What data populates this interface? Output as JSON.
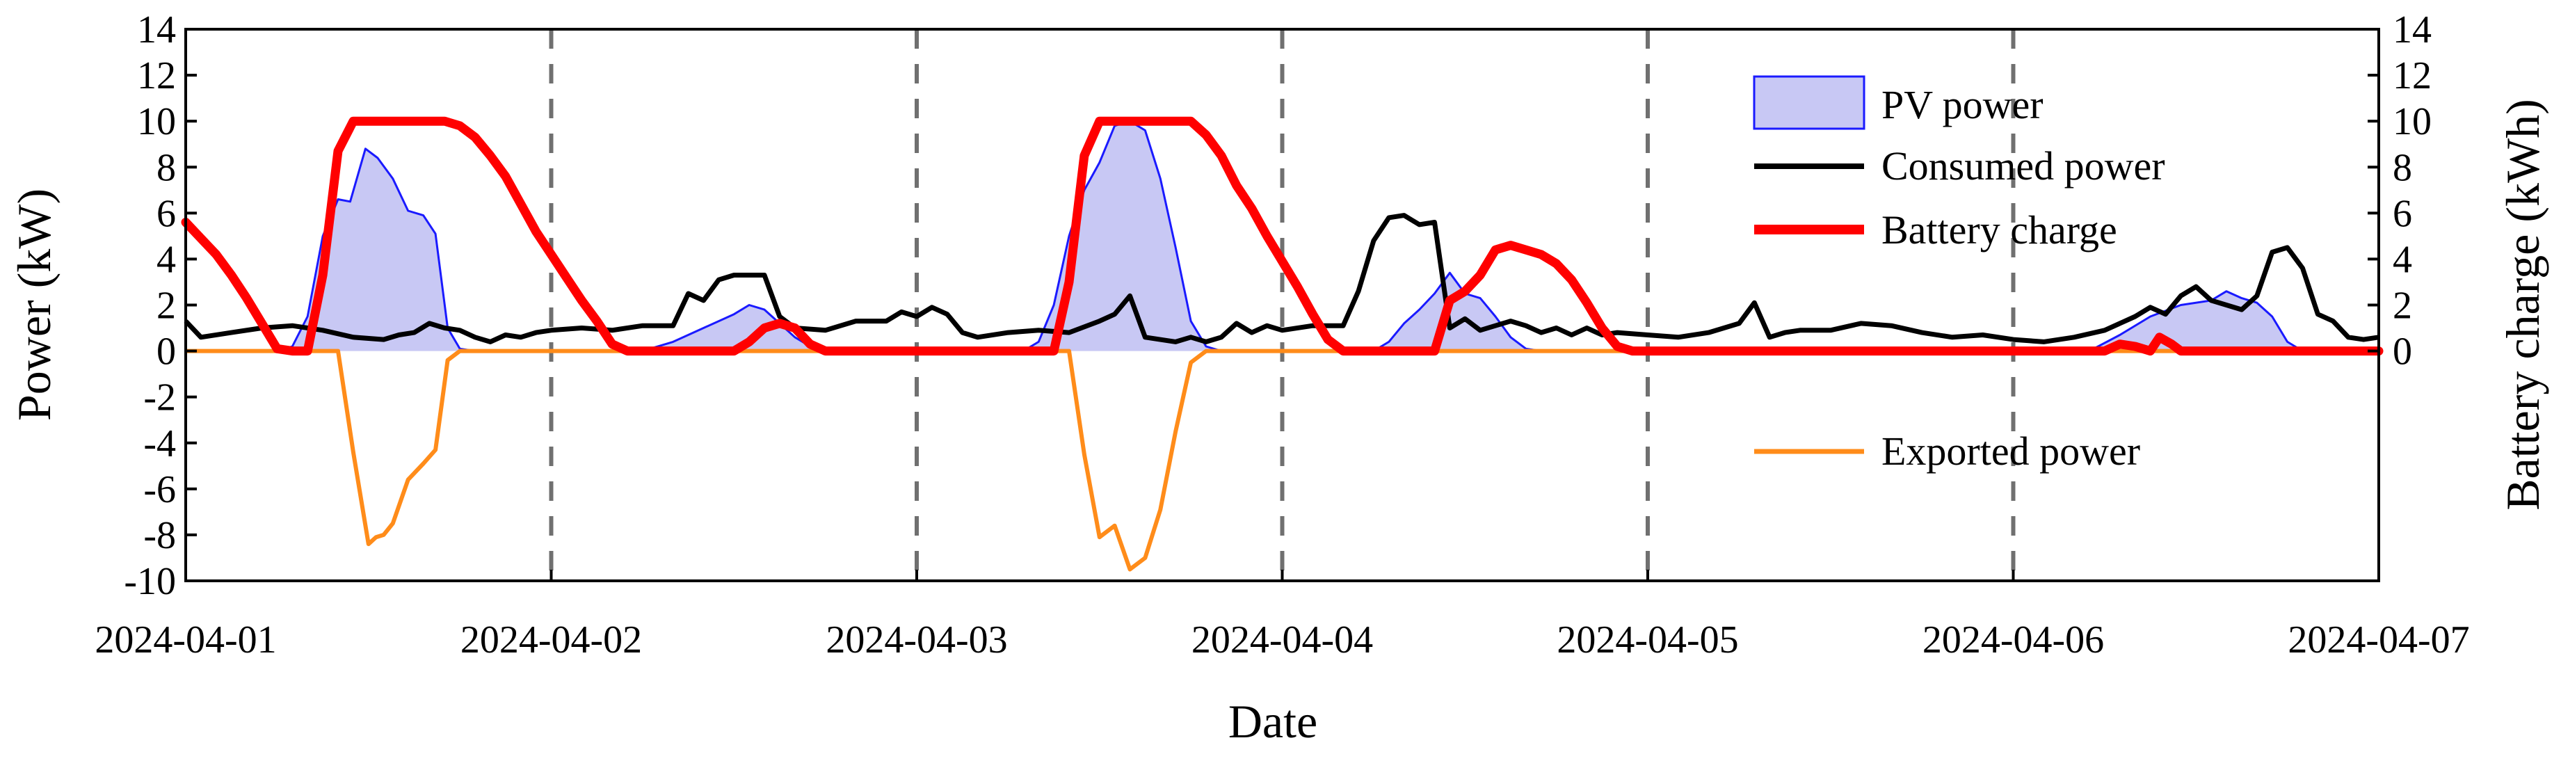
{
  "chart_data": {
    "type": "line",
    "xlabel": "Date",
    "ylabel_left": "Power (kW)",
    "ylabel_right": "Battery charge (kWh)",
    "x_range_hours": [
      0,
      144
    ],
    "x_ticks": [
      {
        "hour": 0,
        "label": "2024-04-01"
      },
      {
        "hour": 24,
        "label": "2024-04-02"
      },
      {
        "hour": 48,
        "label": "2024-04-03"
      },
      {
        "hour": 72,
        "label": "2024-04-04"
      },
      {
        "hour": 96,
        "label": "2024-04-05"
      },
      {
        "hour": 120,
        "label": "2024-04-06"
      },
      {
        "hour": 144,
        "label": "2024-04-07"
      }
    ],
    "day_dividers_hours": [
      24,
      48,
      72,
      96,
      120
    ],
    "ylim_left": [
      -10,
      14
    ],
    "yticks_left": [
      -10,
      -8,
      -6,
      -4,
      -2,
      0,
      2,
      4,
      6,
      8,
      10,
      12,
      14
    ],
    "ylim_right": [
      -10,
      14
    ],
    "yticks_right": [
      0,
      2,
      4,
      6,
      8,
      10,
      12,
      14
    ],
    "legend": {
      "upper": [
        "PV power",
        "Consumed power",
        "Battery charge"
      ],
      "lower": [
        "Exported power"
      ]
    },
    "colors": {
      "pv_fill": "#c8c8f4",
      "pv_line": "#1a1aff",
      "consumed": "#000000",
      "battery": "#ff0000",
      "exported": "#ff8c1a",
      "divider": "#707070"
    },
    "series": [
      {
        "name": "PV power",
        "style": "area",
        "points": [
          [
            0,
            0
          ],
          [
            6,
            0
          ],
          [
            7,
            0.2
          ],
          [
            8,
            1.5
          ],
          [
            9,
            5
          ],
          [
            10,
            6.6
          ],
          [
            10.8,
            6.5
          ],
          [
            11.8,
            8.8
          ],
          [
            12.6,
            8.4
          ],
          [
            13.6,
            7.5
          ],
          [
            14.6,
            6.1
          ],
          [
            15.6,
            5.9
          ],
          [
            16.4,
            5.1
          ],
          [
            17.2,
            1
          ],
          [
            18,
            0.1
          ],
          [
            19,
            0
          ],
          [
            30,
            0
          ],
          [
            32,
            0.4
          ],
          [
            34,
            1
          ],
          [
            36,
            1.6
          ],
          [
            37,
            2
          ],
          [
            38,
            1.8
          ],
          [
            39,
            1.2
          ],
          [
            40,
            0.6
          ],
          [
            41,
            0.2
          ],
          [
            42,
            0
          ],
          [
            55,
            0
          ],
          [
            56,
            0.4
          ],
          [
            57,
            2
          ],
          [
            58,
            5
          ],
          [
            59,
            7
          ],
          [
            60,
            8.2
          ],
          [
            61,
            9.8
          ],
          [
            62,
            10
          ],
          [
            63,
            9.6
          ],
          [
            64,
            7.5
          ],
          [
            65,
            4.5
          ],
          [
            66,
            1.3
          ],
          [
            67,
            0.2
          ],
          [
            68,
            0
          ],
          [
            78,
            0
          ],
          [
            79,
            0.4
          ],
          [
            80,
            1.2
          ],
          [
            81,
            1.8
          ],
          [
            82,
            2.5
          ],
          [
            83,
            3.4
          ],
          [
            84,
            2.5
          ],
          [
            85,
            2.3
          ],
          [
            86,
            1.5
          ],
          [
            87,
            0.6
          ],
          [
            88,
            0.1
          ],
          [
            89,
            0
          ],
          [
            125,
            0
          ],
          [
            127,
            0.7
          ],
          [
            129,
            1.5
          ],
          [
            131,
            2
          ],
          [
            133,
            2.2
          ],
          [
            134,
            2.6
          ],
          [
            135,
            2.3
          ],
          [
            136,
            2.1
          ],
          [
            137,
            1.5
          ],
          [
            138,
            0.4
          ],
          [
            139,
            0
          ],
          [
            144,
            0
          ]
        ]
      },
      {
        "name": "Consumed power",
        "style": "line",
        "points": [
          [
            0,
            1.3
          ],
          [
            1,
            0.6
          ],
          [
            3,
            0.8
          ],
          [
            5,
            1
          ],
          [
            7,
            1.1
          ],
          [
            9,
            0.9
          ],
          [
            11,
            0.6
          ],
          [
            13,
            0.5
          ],
          [
            14,
            0.7
          ],
          [
            15,
            0.8
          ],
          [
            16,
            1.2
          ],
          [
            17,
            1
          ],
          [
            18,
            0.9
          ],
          [
            19,
            0.6
          ],
          [
            20,
            0.4
          ],
          [
            21,
            0.7
          ],
          [
            22,
            0.6
          ],
          [
            23,
            0.8
          ],
          [
            24,
            0.9
          ],
          [
            26,
            1
          ],
          [
            28,
            0.9
          ],
          [
            30,
            1.1
          ],
          [
            32,
            1.1
          ],
          [
            33,
            2.5
          ],
          [
            34,
            2.2
          ],
          [
            35,
            3.1
          ],
          [
            36,
            3.3
          ],
          [
            38,
            3.3
          ],
          [
            39,
            1.5
          ],
          [
            40,
            1
          ],
          [
            42,
            0.9
          ],
          [
            44,
            1.3
          ],
          [
            46,
            1.3
          ],
          [
            47,
            1.7
          ],
          [
            48,
            1.5
          ],
          [
            49,
            1.9
          ],
          [
            50,
            1.6
          ],
          [
            51,
            0.8
          ],
          [
            52,
            0.6
          ],
          [
            54,
            0.8
          ],
          [
            56,
            0.9
          ],
          [
            58,
            0.8
          ],
          [
            60,
            1.3
          ],
          [
            61,
            1.6
          ],
          [
            62,
            2.4
          ],
          [
            63,
            0.6
          ],
          [
            65,
            0.4
          ],
          [
            66,
            0.6
          ],
          [
            67,
            0.4
          ],
          [
            68,
            0.6
          ],
          [
            69,
            1.2
          ],
          [
            70,
            0.8
          ],
          [
            71,
            1.1
          ],
          [
            72,
            0.9
          ],
          [
            74,
            1.1
          ],
          [
            76,
            1.1
          ],
          [
            77,
            2.6
          ],
          [
            78,
            4.8
          ],
          [
            79,
            5.8
          ],
          [
            80,
            5.9
          ],
          [
            81,
            5.5
          ],
          [
            82,
            5.6
          ],
          [
            83,
            1
          ],
          [
            84,
            1.4
          ],
          [
            85,
            0.9
          ],
          [
            86,
            1.1
          ],
          [
            87,
            1.3
          ],
          [
            88,
            1.1
          ],
          [
            89,
            0.8
          ],
          [
            90,
            1
          ],
          [
            91,
            0.7
          ],
          [
            92,
            1
          ],
          [
            93,
            0.7
          ],
          [
            94,
            0.8
          ],
          [
            96,
            0.7
          ],
          [
            98,
            0.6
          ],
          [
            100,
            0.8
          ],
          [
            102,
            1.2
          ],
          [
            103,
            2.1
          ],
          [
            104,
            0.6
          ],
          [
            105,
            0.8
          ],
          [
            106,
            0.9
          ],
          [
            108,
            0.9
          ],
          [
            110,
            1.2
          ],
          [
            112,
            1.1
          ],
          [
            114,
            0.8
          ],
          [
            116,
            0.6
          ],
          [
            118,
            0.7
          ],
          [
            120,
            0.5
          ],
          [
            122,
            0.4
          ],
          [
            124,
            0.6
          ],
          [
            126,
            0.9
          ],
          [
            128,
            1.5
          ],
          [
            129,
            1.9
          ],
          [
            130,
            1.6
          ],
          [
            131,
            2.4
          ],
          [
            132,
            2.8
          ],
          [
            133,
            2.2
          ],
          [
            134,
            2
          ],
          [
            135,
            1.8
          ],
          [
            136,
            2.4
          ],
          [
            137,
            4.3
          ],
          [
            138,
            4.5
          ],
          [
            139,
            3.6
          ],
          [
            140,
            1.6
          ],
          [
            141,
            1.3
          ],
          [
            142,
            0.6
          ],
          [
            143,
            0.5
          ],
          [
            144,
            0.6
          ]
        ]
      },
      {
        "name": "Battery charge",
        "style": "line",
        "axis": "right",
        "points": [
          [
            0,
            5.6
          ],
          [
            1,
            4.9
          ],
          [
            2,
            4.2
          ],
          [
            3,
            3.3
          ],
          [
            4,
            2.3
          ],
          [
            5,
            1.2
          ],
          [
            6,
            0.1
          ],
          [
            7,
            0
          ],
          [
            8,
            0
          ],
          [
            9,
            3.3
          ],
          [
            10,
            8.7
          ],
          [
            11,
            10
          ],
          [
            12,
            10
          ],
          [
            13,
            10
          ],
          [
            14,
            10
          ],
          [
            15,
            10
          ],
          [
            16,
            10
          ],
          [
            17,
            10
          ],
          [
            18,
            9.8
          ],
          [
            19,
            9.3
          ],
          [
            20,
            8.5
          ],
          [
            21,
            7.6
          ],
          [
            22,
            6.4
          ],
          [
            23,
            5.2
          ],
          [
            24,
            4.2
          ],
          [
            25,
            3.2
          ],
          [
            26,
            2.2
          ],
          [
            27,
            1.3
          ],
          [
            28,
            0.3
          ],
          [
            29,
            0
          ],
          [
            30,
            0
          ],
          [
            34,
            0
          ],
          [
            36,
            0
          ],
          [
            37,
            0.4
          ],
          [
            38,
            1
          ],
          [
            39,
            1.2
          ],
          [
            40,
            1
          ],
          [
            41,
            0.3
          ],
          [
            42,
            0
          ],
          [
            48,
            0
          ],
          [
            56,
            0
          ],
          [
            57,
            0
          ],
          [
            58,
            3
          ],
          [
            59,
            8.5
          ],
          [
            60,
            10
          ],
          [
            61,
            10
          ],
          [
            62,
            10
          ],
          [
            63,
            10
          ],
          [
            64,
            10
          ],
          [
            65,
            10
          ],
          [
            66,
            10
          ],
          [
            67,
            9.4
          ],
          [
            68,
            8.5
          ],
          [
            69,
            7.2
          ],
          [
            70,
            6.2
          ],
          [
            71,
            5
          ],
          [
            72,
            3.9
          ],
          [
            73,
            2.8
          ],
          [
            74,
            1.6
          ],
          [
            75,
            0.5
          ],
          [
            76,
            0
          ],
          [
            80,
            0
          ],
          [
            82,
            0
          ],
          [
            83,
            2.2
          ],
          [
            84,
            2.6
          ],
          [
            85,
            3.3
          ],
          [
            86,
            4.4
          ],
          [
            87,
            4.6
          ],
          [
            88,
            4.4
          ],
          [
            89,
            4.2
          ],
          [
            90,
            3.8
          ],
          [
            91,
            3.1
          ],
          [
            92,
            2.1
          ],
          [
            93,
            1
          ],
          [
            94,
            0.2
          ],
          [
            95,
            0
          ],
          [
            110,
            0
          ],
          [
            120,
            0
          ],
          [
            126,
            0
          ],
          [
            127,
            0.3
          ],
          [
            128,
            0.2
          ],
          [
            129,
            0
          ],
          [
            129.6,
            0.6
          ],
          [
            130.4,
            0.3
          ],
          [
            131,
            0
          ],
          [
            133,
            0
          ],
          [
            144,
            0
          ]
        ]
      },
      {
        "name": "Exported power",
        "style": "line",
        "points": [
          [
            0,
            0
          ],
          [
            10,
            0
          ],
          [
            11,
            -4.4
          ],
          [
            12,
            -8.4
          ],
          [
            12.5,
            -8.1
          ],
          [
            13,
            -8
          ],
          [
            13.6,
            -7.5
          ],
          [
            14.6,
            -5.6
          ],
          [
            15.6,
            -4.9
          ],
          [
            16.4,
            -4.3
          ],
          [
            17.2,
            -0.4
          ],
          [
            18,
            0
          ],
          [
            48,
            0
          ],
          [
            58,
            0
          ],
          [
            59,
            -4.5
          ],
          [
            60,
            -8.1
          ],
          [
            61,
            -7.6
          ],
          [
            62,
            -9.5
          ],
          [
            63,
            -9
          ],
          [
            64,
            -6.9
          ],
          [
            65,
            -3.5
          ],
          [
            66,
            -0.5
          ],
          [
            67,
            0
          ],
          [
            144,
            0
          ]
        ]
      }
    ]
  }
}
